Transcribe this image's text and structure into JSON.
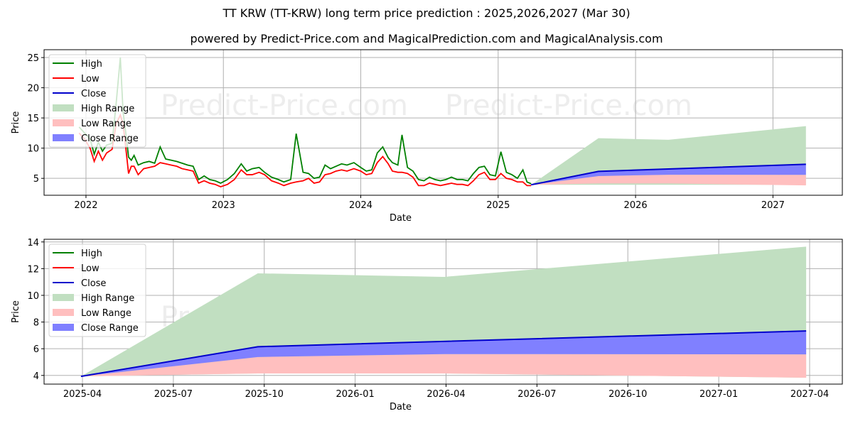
{
  "header": {
    "title": "TT KRW (TT-KRW) long term price prediction : 2025,2026,2027 (Mar 30)",
    "subtitle": "powered by Predict-Price.com and MagicalPrediction.com and MagicalAnalysis.com"
  },
  "watermark": "Predict-Price.com",
  "colors": {
    "high": "#008000",
    "low": "#ff0000",
    "close": "#0000cc",
    "high_range": "#c1dfc1",
    "low_range": "#ffbfbf",
    "close_range": "#8080ff",
    "grid": "#b0b0b0"
  },
  "legend": [
    "High",
    "Low",
    "Close",
    "High Range",
    "Low Range",
    "Close Range"
  ],
  "chart_data": [
    {
      "type": "line",
      "title": "Long term history and prediction",
      "xlabel": "Date",
      "ylabel": "Price",
      "x_ticks": [
        "2022",
        "2023",
        "2024",
        "2025",
        "2026",
        "2027"
      ],
      "y_ticks": [
        5,
        10,
        15,
        20,
        25
      ],
      "xlim": [
        2021.7,
        2027.5
      ],
      "ylim": [
        2.2,
        26.3
      ],
      "grid": true,
      "legend_position": "upper left",
      "history": {
        "x": [
          2021.95,
          2021.99,
          2022.03,
          2022.06,
          2022.09,
          2022.12,
          2022.15,
          2022.19,
          2022.22,
          2022.25,
          2022.27,
          2022.29,
          2022.31,
          2022.33,
          2022.35,
          2022.38,
          2022.42,
          2022.46,
          2022.5,
          2022.54,
          2022.58,
          2022.62,
          2022.66,
          2022.7,
          2022.74,
          2022.78,
          2022.82,
          2022.86,
          2022.9,
          2022.94,
          2022.98,
          2023.03,
          2023.08,
          2023.13,
          2023.17,
          2023.21,
          2023.26,
          2023.3,
          2023.35,
          2023.4,
          2023.44,
          2023.49,
          2023.53,
          2023.58,
          2023.62,
          2023.66,
          2023.7,
          2023.74,
          2023.78,
          2023.82,
          2023.86,
          2023.9,
          2023.95,
          2024.0,
          2024.04,
          2024.08,
          2024.12,
          2024.16,
          2024.2,
          2024.23,
          2024.27,
          2024.3,
          2024.34,
          2024.38,
          2024.42,
          2024.46,
          2024.5,
          2024.54,
          2024.58,
          2024.62,
          2024.66,
          2024.7,
          2024.74,
          2024.78,
          2024.82,
          2024.86,
          2024.9,
          2024.94,
          2024.98,
          2025.02,
          2025.06,
          2025.1,
          2025.14,
          2025.18,
          2025.21,
          2025.24
        ],
        "high": [
          13.5,
          12.5,
          11.5,
          9.0,
          11.0,
          9.5,
          10.5,
          10.8,
          17.5,
          25.0,
          16.0,
          12.5,
          8.5,
          8.0,
          8.8,
          7.2,
          7.6,
          7.8,
          7.5,
          10.2,
          8.2,
          8.0,
          7.8,
          7.5,
          7.2,
          7.0,
          4.8,
          5.4,
          4.8,
          4.6,
          4.2,
          4.8,
          5.8,
          7.4,
          6.2,
          6.6,
          6.8,
          6.0,
          5.2,
          4.8,
          4.4,
          4.8,
          12.4,
          6.0,
          5.8,
          5.0,
          5.2,
          7.2,
          6.6,
          7.0,
          7.4,
          7.2,
          7.6,
          6.8,
          6.2,
          6.4,
          9.2,
          10.2,
          8.4,
          7.6,
          7.2,
          12.2,
          6.8,
          6.2,
          4.8,
          4.6,
          5.2,
          4.8,
          4.6,
          4.8,
          5.2,
          4.8,
          4.8,
          4.6,
          5.8,
          6.8,
          7.0,
          5.6,
          5.4,
          9.4,
          6.0,
          5.6,
          5.0,
          6.4,
          4.4,
          4.1
        ],
        "low": [
          12.5,
          11.5,
          10.0,
          7.8,
          9.5,
          8.0,
          9.2,
          9.8,
          14.0,
          15.5,
          14.0,
          10.0,
          5.8,
          7.0,
          7.0,
          5.6,
          6.6,
          6.8,
          7.0,
          7.6,
          7.4,
          7.2,
          7.0,
          6.6,
          6.4,
          6.2,
          4.2,
          4.6,
          4.2,
          4.0,
          3.6,
          4.0,
          4.8,
          6.4,
          5.6,
          5.6,
          6.0,
          5.6,
          4.6,
          4.2,
          3.8,
          4.2,
          4.4,
          4.6,
          5.0,
          4.2,
          4.4,
          5.6,
          5.8,
          6.2,
          6.4,
          6.2,
          6.6,
          6.2,
          5.6,
          5.8,
          7.6,
          8.6,
          7.4,
          6.2,
          6.0,
          6.0,
          5.8,
          5.2,
          3.8,
          3.8,
          4.2,
          4.0,
          3.8,
          4.0,
          4.2,
          4.0,
          4.0,
          3.8,
          4.6,
          5.6,
          6.0,
          4.8,
          4.8,
          5.8,
          5.0,
          4.8,
          4.4,
          4.4,
          3.8,
          3.8
        ]
      },
      "forecast": {
        "x": [
          2025.24,
          2025.73,
          2026.24,
          2027.24
        ],
        "dates": [
          "2025-03-30",
          "2025-09-25",
          "2026-03-29",
          "2027-03-28"
        ],
        "close": [
          3.93,
          6.15,
          6.55,
          7.33
        ],
        "high_range": [
          [
            3.93,
            3.93
          ],
          [
            3.93,
            11.65
          ],
          [
            3.93,
            11.38
          ],
          [
            3.93,
            13.65
          ]
        ],
        "low_range": [
          [
            3.93,
            3.93
          ],
          [
            4.15,
            5.38
          ],
          [
            4.15,
            5.6
          ],
          [
            3.83,
            5.58
          ]
        ],
        "close_range": [
          [
            3.93,
            3.93
          ],
          [
            5.38,
            6.15
          ],
          [
            5.6,
            6.55
          ],
          [
            5.58,
            7.33
          ]
        ]
      }
    },
    {
      "type": "area",
      "title": "Prediction detail",
      "xlabel": "Date",
      "ylabel": "Price",
      "x_ticks": [
        "2025-04",
        "2025-07",
        "2025-10",
        "2026-01",
        "2026-04",
        "2026-07",
        "2026-10",
        "2027-01",
        "2027-04"
      ],
      "y_ticks": [
        4,
        6,
        8,
        10,
        12,
        14
      ],
      "ylim": [
        3.35,
        14.2
      ],
      "grid": true,
      "legend_position": "upper left",
      "categories": [
        "2025-03-30",
        "2025-09-25",
        "2026-03-29",
        "2027-03-28"
      ],
      "series": [
        {
          "name": "Close",
          "values": [
            3.93,
            6.15,
            6.55,
            7.33
          ]
        },
        {
          "name": "High Range upper",
          "values": [
            3.93,
            11.65,
            11.38,
            13.65
          ]
        },
        {
          "name": "Close Range lower",
          "values": [
            3.93,
            5.38,
            5.6,
            5.58
          ]
        },
        {
          "name": "Low Range lower",
          "values": [
            3.93,
            4.15,
            4.15,
            3.83
          ]
        }
      ]
    }
  ]
}
